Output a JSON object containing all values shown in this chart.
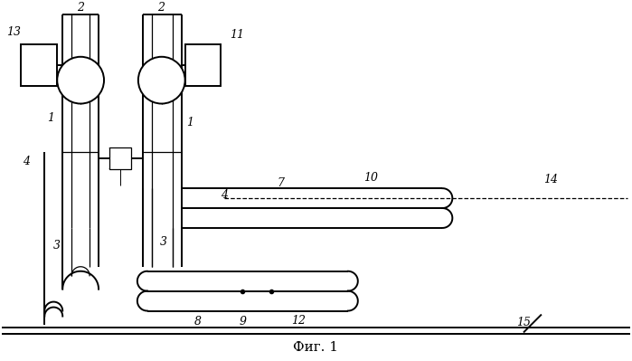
{
  "bg": "#ffffff",
  "caption": "Фиг. 1",
  "lw": 1.4,
  "lw_thin": 0.9
}
